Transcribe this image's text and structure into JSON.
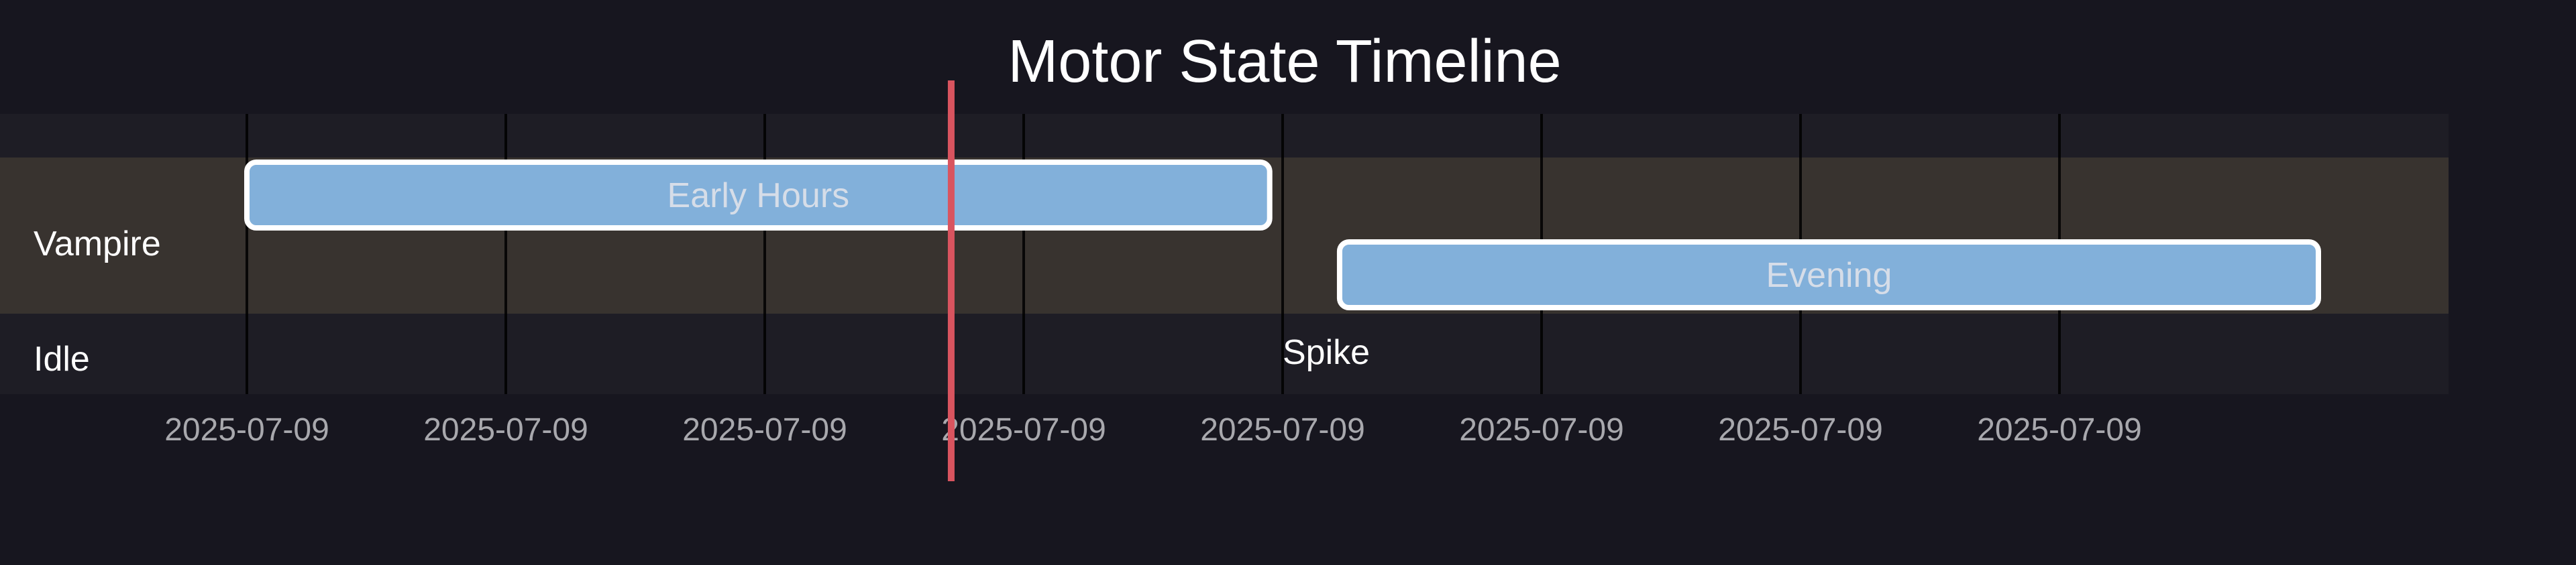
{
  "chart_data": {
    "type": "timeline",
    "title": "Motor State Timeline",
    "lanes": [
      {
        "name": "Vampire",
        "color": "#38332f"
      },
      {
        "name": "Idle",
        "color": "#1e1d25"
      }
    ],
    "x_ticks": [
      "2025-07-09",
      "2025-07-09",
      "2025-07-09",
      "2025-07-09",
      "2025-07-09",
      "2025-07-09",
      "2025-07-09",
      "2025-07-09"
    ],
    "x_range": [
      0,
      9
    ],
    "tick_positions": [
      1,
      2,
      3,
      4,
      5,
      6,
      7,
      8
    ],
    "bars": [
      {
        "lane": "Vampire",
        "label": "Early Hours",
        "start": 1.0,
        "end": 4.95,
        "row": 0,
        "color": "#82b0da"
      },
      {
        "lane": "Vampire",
        "label": "Evening",
        "start": 5.22,
        "end": 9.0,
        "row": 1,
        "color": "#82b0da"
      }
    ],
    "markers": [
      {
        "lane": "Idle",
        "label": "Spike",
        "x": 5.0
      }
    ],
    "current_time": {
      "x": 3.72,
      "color": "#d9545f"
    },
    "grid": true
  }
}
